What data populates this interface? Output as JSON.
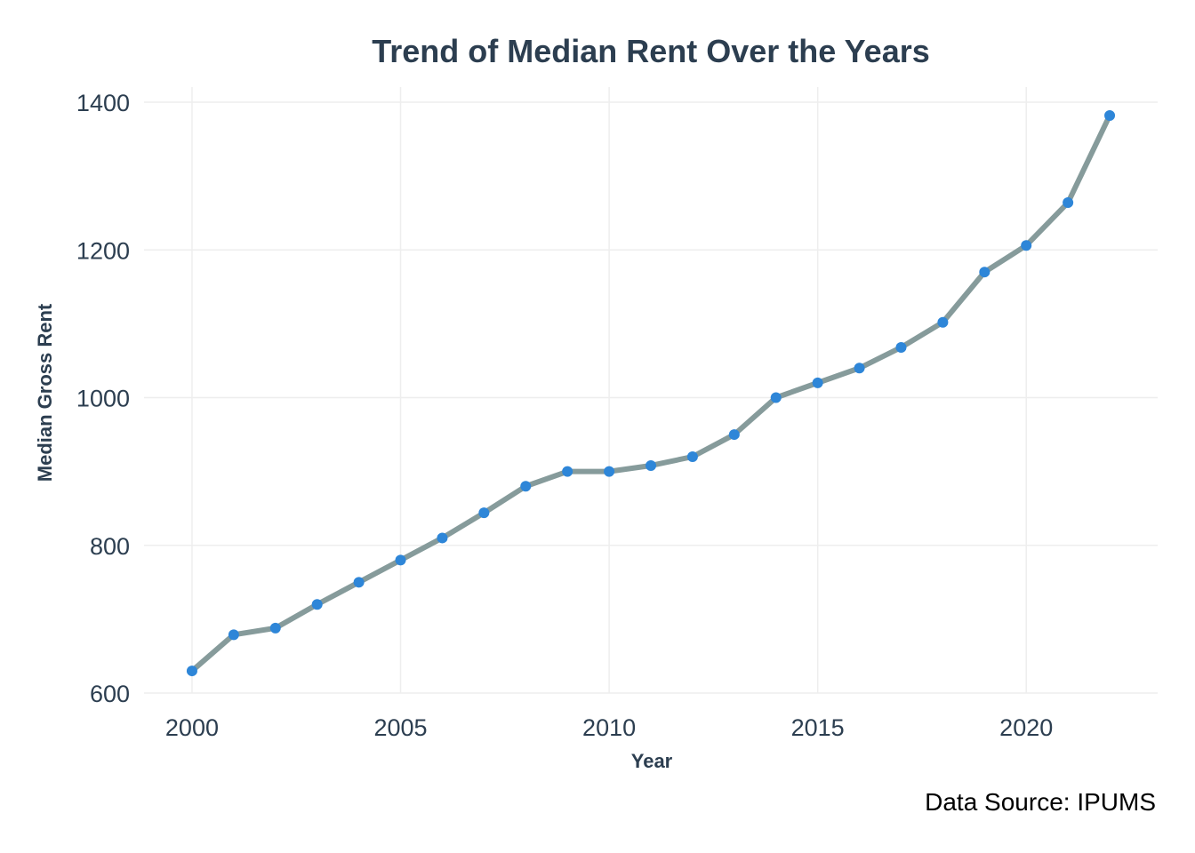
{
  "chart_data": {
    "type": "line",
    "title": "Trend of Median Rent Over the Years",
    "xlabel": "Year",
    "ylabel": "Median Gross Rent",
    "caption": "Data Source: IPUMS",
    "x": [
      2000,
      2001,
      2002,
      2003,
      2004,
      2005,
      2006,
      2007,
      2008,
      2009,
      2010,
      2011,
      2012,
      2013,
      2014,
      2015,
      2016,
      2017,
      2018,
      2019,
      2020,
      2021,
      2022
    ],
    "series": [
      {
        "values": [
          630,
          679,
          688,
          720,
          750,
          780,
          810,
          844,
          880,
          900,
          900,
          908,
          920,
          950,
          1000,
          1020,
          1040,
          1068,
          1102,
          1170,
          1206,
          1264,
          1382
        ]
      }
    ],
    "xticks": [
      "2000",
      "2005",
      "2010",
      "2015",
      "2020"
    ],
    "yticks": [
      "600",
      "800",
      "1000",
      "1200",
      "1400"
    ],
    "xlim": [
      1998.85,
      2023.15
    ],
    "ylim": [
      600,
      1400
    ],
    "grid": true,
    "colors": {
      "line": "#869b9b",
      "point": "#2e86d8",
      "text": "#2c3e50",
      "grid": "#eeeeee"
    }
  }
}
